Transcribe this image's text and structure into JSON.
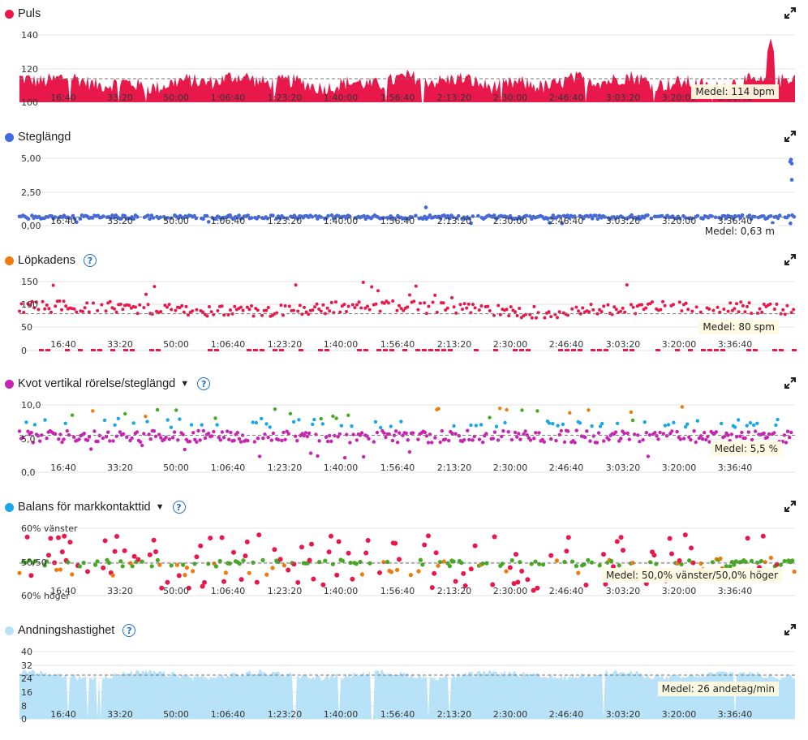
{
  "x_ticks": [
    "16:40",
    "33:20",
    "50:00",
    "1:06:40",
    "1:23:20",
    "1:40:00",
    "1:56:40",
    "2:13:20",
    "2:30:00",
    "2:46:40",
    "3:03:20",
    "3:20:00",
    "3:36:40"
  ],
  "panels": [
    {
      "title": "Puls",
      "color": "#e8194a",
      "has_dropdown": false,
      "has_help": false,
      "average_label": "Medel: 114 bpm",
      "y_ticks": [
        "140",
        "120",
        "100"
      ],
      "chart_data": {
        "type": "area",
        "title": "Puls",
        "y_tick_values": [
          140,
          120,
          100
        ],
        "ylim": [
          100,
          140
        ],
        "average": 114,
        "x_range_minutes": [
          0,
          233
        ],
        "series": [
          {
            "name": "Puls",
            "typical_range": [
              108,
              122
            ],
            "peak": 138
          }
        ]
      }
    },
    {
      "title": "Steglängd",
      "color": "#4169e1",
      "has_dropdown": false,
      "has_help": false,
      "average_label": "Medel: 0,63 m",
      "y_ticks": [
        "5,00",
        "2,50",
        "0,00"
      ],
      "chart_data": {
        "type": "scatter",
        "title": "Steglängd",
        "y_tick_values": [
          5.0,
          2.5,
          0.0
        ],
        "ylim": [
          0,
          5.5
        ],
        "average": 0.63,
        "series": [
          {
            "name": "Steglängd",
            "typical_range": [
              0.5,
              0.8
            ]
          }
        ]
      }
    },
    {
      "title": "Löpkadens",
      "color": "#ee7b0c",
      "has_dropdown": false,
      "has_help": true,
      "average_label": "Medel: 80 spm",
      "y_ticks": [
        "150",
        "100",
        "50",
        "0"
      ],
      "chart_data": {
        "type": "scatter",
        "title": "Löpkadens",
        "y_tick_values": [
          150,
          100,
          50,
          0
        ],
        "ylim": [
          0,
          160
        ],
        "average": 80,
        "series": [
          {
            "name": "Löpkadens",
            "typical_range": [
              75,
              105
            ]
          }
        ]
      }
    },
    {
      "title": "Kvot vertikal rörelse/steglängd",
      "color": "#c724b1",
      "has_dropdown": true,
      "has_help": true,
      "average_label": "Medel: 5,5 %",
      "y_ticks": [
        "10,0",
        "5,0",
        "0,0"
      ],
      "chart_data": {
        "type": "scatter",
        "title": "Kvot vertikal rörelse/steglängd",
        "y_tick_values": [
          10.0,
          5.0,
          0.0
        ],
        "ylim": [
          0,
          10.5
        ],
        "average": 5.5
      }
    },
    {
      "title": "Balans för markkontakttid",
      "color": "#1aa7e6",
      "has_dropdown": true,
      "has_help": true,
      "average_label": "Medel: 50,0% vänster/50,0% höger",
      "y_ticks": [
        "60% vänster",
        "50/50",
        "60% höger"
      ],
      "chart_data": {
        "type": "scatter",
        "title": "Balans för markkontakttid",
        "y_tick_labels": [
          "60% vänster",
          "50/50",
          "60% höger"
        ],
        "average": "50,0% vänster/50,0% höger"
      }
    },
    {
      "title": "Andningshastighet",
      "color": "#b8e2f8",
      "has_dropdown": false,
      "has_help": true,
      "average_label": "Medel: 26 andetag/min",
      "y_ticks": [
        "40",
        "32",
        "24",
        "16",
        "8",
        "0"
      ],
      "chart_data": {
        "type": "area",
        "title": "Andningshastighet",
        "y_tick_values": [
          40,
          32,
          24,
          16,
          8,
          0
        ],
        "ylim": [
          0,
          40
        ],
        "average": 26,
        "series": [
          {
            "name": "Andningshastighet",
            "typical_range": [
              24,
              29
            ]
          }
        ]
      }
    }
  ],
  "colors": {
    "red": "#e8194a",
    "blue": "#4169e1",
    "purple": "#c724b1",
    "cyan": "#1aa7e6",
    "green": "#44aa22",
    "orange": "#ee7b0c",
    "light_blue": "#b8e2f8",
    "grid": "#e3e3e3",
    "avg_line": "#777777"
  },
  "icons": {
    "expand": "expand-icon",
    "help": "help-icon",
    "dropdown": "caret-down-icon"
  }
}
